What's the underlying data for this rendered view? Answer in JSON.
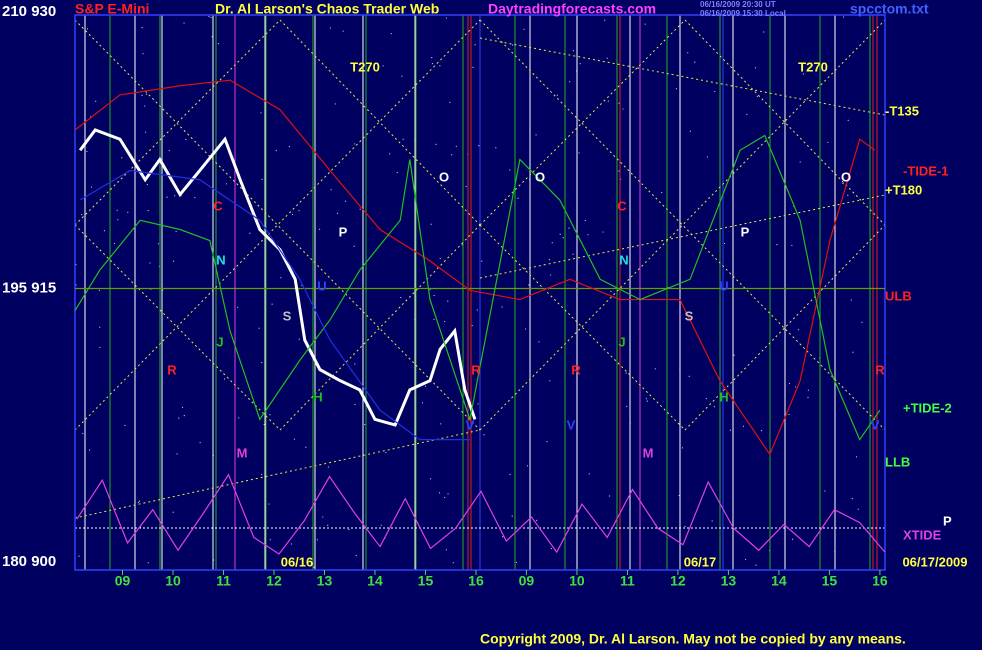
{
  "chart_data": {
    "type": "line",
    "title": "S&P E-Mini",
    "subtitle": "Dr. Al Larson's Chaos Trader Web",
    "site": "Daytradingforecasts.com",
    "timestamps": [
      "06/16/2009 20:30 UT",
      "06/16/2009 15:30 Local"
    ],
    "file": "spcctom.txt",
    "copyright": "Copyright 2009, Dr. Al Larson. May not be copied by any means.",
    "ylim": [
      900,
      930
    ],
    "yticks": [
      {
        "value": 900,
        "label": "180  900"
      },
      {
        "value": 915,
        "label": "195  915"
      },
      {
        "value": 930,
        "label": "210  930"
      }
    ],
    "xlim": [
      0,
      16.2
    ],
    "xticks": [
      {
        "value": 1,
        "label": "09"
      },
      {
        "value": 2,
        "label": "10"
      },
      {
        "value": 3,
        "label": "11"
      },
      {
        "value": 4,
        "label": "12"
      },
      {
        "value": 5,
        "label": "13"
      },
      {
        "value": 6,
        "label": "14"
      },
      {
        "value": 7,
        "label": "15"
      },
      {
        "value": 8,
        "label": "16"
      },
      {
        "value": 9,
        "label": "09"
      },
      {
        "value": 10,
        "label": "10"
      },
      {
        "value": 11,
        "label": "11"
      },
      {
        "value": 12,
        "label": "12"
      },
      {
        "value": 13,
        "label": "13"
      },
      {
        "value": 14,
        "label": "14"
      },
      {
        "value": 15,
        "label": "15"
      },
      {
        "value": 16,
        "label": "16"
      }
    ],
    "grid": true,
    "series": [
      {
        "name": "Price",
        "color": "#ffffff",
        "x": [
          0.16,
          0.46,
          0.95,
          1.45,
          1.74,
          2.14,
          2.53,
          3.03,
          3.33,
          3.72,
          4.12,
          4.42,
          4.61,
          4.91,
          5.31,
          5.7,
          6.0,
          6.4,
          6.69,
          7.09,
          7.29,
          7.58,
          7.78,
          7.98
        ],
        "values": [
          922.5,
          923.6,
          923.1,
          920.9,
          922.0,
          920.1,
          921.4,
          923.1,
          920.9,
          918.2,
          917.1,
          915.5,
          912.2,
          910.6,
          910.0,
          909.5,
          907.9,
          907.6,
          909.5,
          910.0,
          911.7,
          912.7,
          909.5,
          907.9
        ]
      },
      {
        "name": "-TIDE-1",
        "color": "#e01010",
        "x": [
          0.06,
          0.95,
          2.14,
          3.13,
          4.12,
          5.11,
          6.1,
          7.09,
          7.88,
          8.87,
          9.86,
          10.85,
          12.04,
          12.83,
          13.82,
          14.42,
          15.01,
          15.6,
          15.9
        ],
        "values": [
          923.6,
          925.5,
          926.0,
          926.3,
          924.7,
          921.4,
          918.2,
          916.5,
          914.9,
          914.4,
          915.5,
          914.4,
          914.4,
          910.0,
          906.0,
          910.0,
          917.6,
          923.1,
          922.5
        ]
      },
      {
        "name": "+TIDE-2",
        "color": "#20c020",
        "x": [
          0.06,
          0.55,
          1.35,
          2.14,
          2.73,
          3.13,
          3.72,
          4.51,
          5.11,
          5.7,
          6.5,
          6.69,
          7.09,
          7.88,
          8.87,
          9.66,
          10.46,
          11.25,
          12.24,
          13.23,
          13.72,
          14.42,
          15.01,
          15.6,
          16.0
        ],
        "values": [
          913.8,
          916.0,
          918.7,
          918.2,
          917.6,
          912.7,
          907.9,
          911.1,
          913.3,
          916.0,
          918.7,
          922.0,
          914.4,
          907.9,
          922.0,
          919.8,
          915.5,
          914.4,
          915.5,
          922.5,
          923.3,
          918.7,
          910.6,
          906.8,
          908.4
        ]
      },
      {
        "name": "Field",
        "color": "#2030e0",
        "x": [
          0.16,
          1.15,
          2.53,
          3.72,
          4.51,
          5.11,
          6.1,
          6.89,
          7.88
        ],
        "values": [
          919.8,
          921.4,
          920.9,
          918.7,
          915.5,
          912.2,
          908.4,
          906.8,
          906.8
        ]
      },
      {
        "name": "XTIDE",
        "color": "#e040e0",
        "x": [
          0.1,
          0.6,
          1.1,
          1.6,
          2.1,
          2.6,
          3.1,
          3.6,
          4.1,
          4.6,
          5.1,
          5.6,
          6.1,
          6.6,
          7.1,
          7.6,
          8.1,
          8.6,
          9.1,
          9.6,
          10.1,
          10.6,
          11.1,
          11.6,
          12.1,
          12.6,
          13.1,
          13.6,
          14.1,
          14.6,
          15.1,
          15.6,
          16.1
        ],
        "values": [
          902.5,
          904.6,
          901.2,
          903.0,
          900.8,
          902.8,
          904.9,
          901.5,
          900.6,
          902.4,
          904.8,
          902.8,
          901.0,
          903.6,
          900.9,
          902.0,
          904.0,
          901.3,
          902.6,
          900.7,
          903.3,
          901.5,
          904.1,
          902.0,
          901.1,
          904.5,
          902.0,
          900.8,
          902.2,
          901.0,
          903.0,
          902.3,
          900.7
        ]
      }
    ],
    "annotations": [
      "T270",
      "T270",
      "O",
      "O",
      "O",
      "C",
      "C",
      "P",
      "P",
      "N",
      "N",
      "U",
      "U",
      "S",
      "S",
      "J",
      "J",
      "R",
      "R",
      "R",
      "R",
      "H",
      "H",
      "V",
      "V",
      "V",
      "M",
      "M",
      "-T135",
      "-TIDE-1",
      "+T180",
      "ULB",
      "+TIDE-2",
      "LLB",
      "XTIDE",
      "P",
      "06/16",
      "06/17",
      "06/17/2009"
    ]
  }
}
